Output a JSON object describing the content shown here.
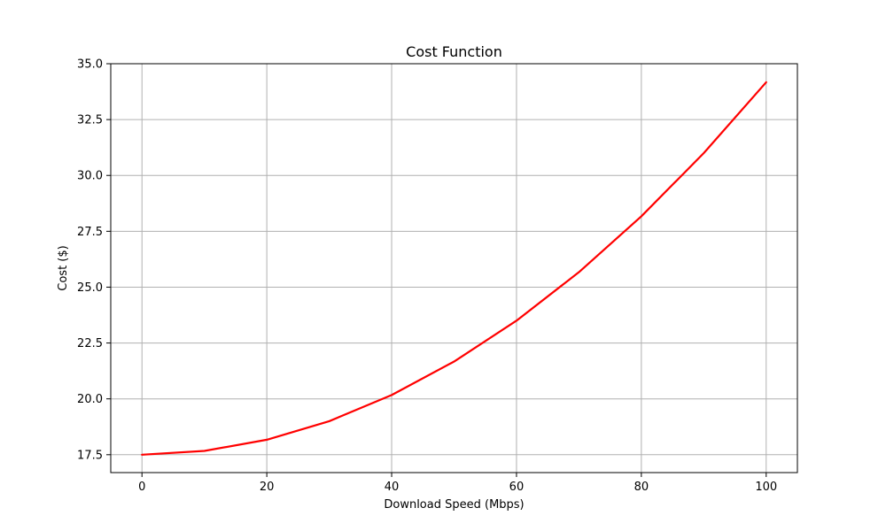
{
  "chart_data": {
    "type": "line",
    "title": "Cost Function",
    "xlabel": "Download Speed (Mbps)",
    "ylabel": "Cost ($)",
    "xlim": [
      -5,
      105
    ],
    "ylim": [
      16.7,
      35.0
    ],
    "xticks": [
      0,
      20,
      40,
      60,
      80,
      100
    ],
    "xtick_labels": [
      "0",
      "20",
      "40",
      "60",
      "80",
      "100"
    ],
    "yticks": [
      17.5,
      20.0,
      22.5,
      25.0,
      27.5,
      30.0,
      32.5,
      35.0
    ],
    "ytick_labels": [
      "17.5",
      "20.0",
      "22.5",
      "25.0",
      "27.5",
      "30.0",
      "32.5",
      "35.0"
    ],
    "grid": true,
    "series": [
      {
        "color": "#ff0000",
        "x": [
          0,
          10,
          20,
          30,
          40,
          50,
          60,
          70,
          80,
          90,
          100
        ],
        "y": [
          17.5,
          17.67,
          18.17,
          19.0,
          20.17,
          21.67,
          23.5,
          25.67,
          28.17,
          31.0,
          34.17
        ]
      }
    ]
  }
}
